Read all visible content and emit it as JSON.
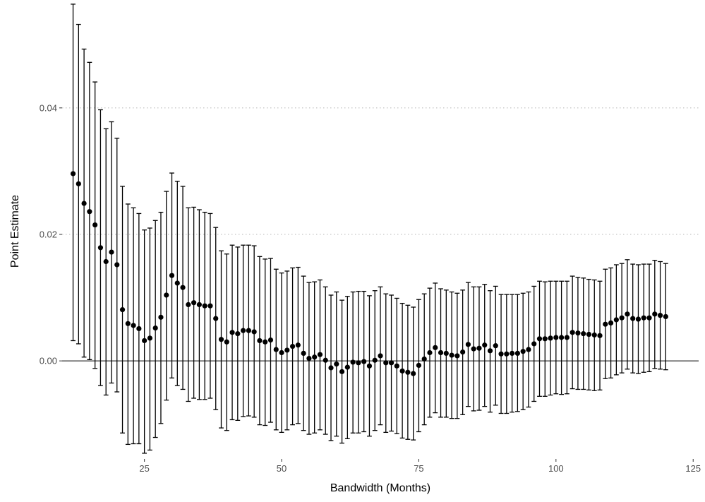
{
  "chart_data": {
    "type": "scatter",
    "title": "",
    "xlabel": "Bandwidth (Months)",
    "ylabel": "Point Estimate",
    "xlim": [
      10,
      126
    ],
    "ylim": [
      -0.0155,
      0.0565
    ],
    "xticks": [
      25,
      50,
      75,
      100,
      125
    ],
    "xtick_labels": [
      "25",
      "50",
      "75",
      "100",
      "125"
    ],
    "yticks": [
      0.0,
      0.02,
      0.04
    ],
    "ytick_labels": [
      "0.00",
      "0.02",
      "0.04"
    ],
    "grid": "dotted horizontal major gridlines",
    "reference_line": 0,
    "error_bars": "vertical with caps",
    "colors": {
      "points": "#000000",
      "grid": "#bebebe",
      "text": "#4d4d4d"
    },
    "x": [
      12,
      13,
      14,
      15,
      16,
      17,
      18,
      19,
      20,
      21,
      22,
      23,
      24,
      25,
      26,
      27,
      28,
      29,
      30,
      31,
      32,
      33,
      34,
      35,
      36,
      37,
      38,
      39,
      40,
      41,
      42,
      43,
      44,
      45,
      46,
      47,
      48,
      49,
      50,
      51,
      52,
      53,
      54,
      55,
      56,
      57,
      58,
      59,
      60,
      61,
      62,
      63,
      64,
      65,
      66,
      67,
      68,
      69,
      70,
      71,
      72,
      73,
      74,
      75,
      76,
      77,
      78,
      79,
      80,
      81,
      82,
      83,
      84,
      85,
      86,
      87,
      88,
      89,
      90,
      91,
      92,
      93,
      94,
      95,
      96,
      97,
      98,
      99,
      100,
      101,
      102,
      103,
      104,
      105,
      106,
      107,
      108,
      109,
      110,
      111,
      112,
      113,
      114,
      115,
      116,
      117,
      118,
      119,
      120
    ],
    "estimate": [
      0.0296,
      0.028,
      0.0249,
      0.0236,
      0.0215,
      0.0179,
      0.0157,
      0.0172,
      0.0152,
      0.0081,
      0.0059,
      0.0056,
      0.0051,
      0.0032,
      0.0036,
      0.0052,
      0.0069,
      0.0104,
      0.0135,
      0.0123,
      0.0116,
      0.0089,
      0.0092,
      0.0089,
      0.0087,
      0.0087,
      0.0067,
      0.0034,
      0.003,
      0.0045,
      0.0043,
      0.0048,
      0.0048,
      0.0046,
      0.0032,
      0.003,
      0.0033,
      0.0018,
      0.0013,
      0.0017,
      0.0023,
      0.0025,
      0.0012,
      0.0004,
      0.0006,
      0.001,
      0.0001,
      -0.0011,
      -0.0005,
      -0.0017,
      -0.001,
      -0.0002,
      -0.0003,
      -0.0001,
      -0.0008,
      0.0001,
      0.0008,
      -0.0003,
      -0.0003,
      -0.0008,
      -0.0016,
      -0.0018,
      -0.002,
      -0.0007,
      0.0003,
      0.0013,
      0.0021,
      0.0013,
      0.0012,
      0.0009,
      0.0008,
      0.0014,
      0.0026,
      0.0019,
      0.002,
      0.0025,
      0.0016,
      0.0024,
      0.0011,
      0.0011,
      0.0012,
      0.0012,
      0.0015,
      0.0018,
      0.0027,
      0.0035,
      0.0035,
      0.0036,
      0.0037,
      0.0037,
      0.0037,
      0.0045,
      0.0044,
      0.0043,
      0.0042,
      0.0041,
      0.004,
      0.0058,
      0.006,
      0.0065,
      0.0068,
      0.0074,
      0.0067,
      0.0066,
      0.0068,
      0.0068,
      0.0074,
      0.0072,
      0.007
    ],
    "upper": [
      0.0564,
      0.0532,
      0.0493,
      0.0472,
      0.0441,
      0.0397,
      0.0367,
      0.0378,
      0.0352,
      0.0276,
      0.0248,
      0.0242,
      0.0233,
      0.0207,
      0.021,
      0.0222,
      0.0235,
      0.0268,
      0.0297,
      0.0284,
      0.0276,
      0.0242,
      0.0243,
      0.0239,
      0.0235,
      0.0233,
      0.0211,
      0.0174,
      0.0169,
      0.0183,
      0.018,
      0.0183,
      0.0183,
      0.0182,
      0.0165,
      0.0161,
      0.0162,
      0.0145,
      0.0139,
      0.0142,
      0.0147,
      0.0148,
      0.0134,
      0.0124,
      0.0125,
      0.0128,
      0.0117,
      0.0104,
      0.0109,
      0.0096,
      0.0102,
      0.0109,
      0.011,
      0.011,
      0.0103,
      0.0111,
      0.0117,
      0.0106,
      0.0104,
      0.0099,
      0.0091,
      0.0088,
      0.0085,
      0.0097,
      0.0106,
      0.0115,
      0.0123,
      0.0114,
      0.0112,
      0.0109,
      0.0107,
      0.0112,
      0.0124,
      0.0117,
      0.0117,
      0.0121,
      0.0111,
      0.0118,
      0.0105,
      0.0105,
      0.0105,
      0.0105,
      0.0107,
      0.0109,
      0.0118,
      0.0126,
      0.0125,
      0.0126,
      0.0126,
      0.0126,
      0.0126,
      0.0134,
      0.0132,
      0.0131,
      0.0129,
      0.0128,
      0.0126,
      0.0145,
      0.0147,
      0.0152,
      0.0154,
      0.016,
      0.0153,
      0.0152,
      0.0153,
      0.0153,
      0.0159,
      0.0157,
      0.0154
    ],
    "lower": [
      0.0032,
      0.0027,
      0.0006,
      0.0002,
      -0.0012,
      -0.0039,
      -0.0054,
      -0.0035,
      -0.0049,
      -0.0114,
      -0.0132,
      -0.0131,
      -0.0131,
      -0.0146,
      -0.0141,
      -0.0121,
      -0.0099,
      -0.0062,
      -0.0027,
      -0.0039,
      -0.0045,
      -0.0064,
      -0.0059,
      -0.0061,
      -0.0061,
      -0.0059,
      -0.0077,
      -0.0106,
      -0.011,
      -0.0093,
      -0.0094,
      -0.0088,
      -0.0087,
      -0.0089,
      -0.0101,
      -0.0102,
      -0.0097,
      -0.0109,
      -0.0113,
      -0.0109,
      -0.0101,
      -0.0099,
      -0.011,
      -0.0116,
      -0.0114,
      -0.0109,
      -0.0116,
      -0.0126,
      -0.0119,
      -0.013,
      -0.0123,
      -0.0114,
      -0.0114,
      -0.0112,
      -0.0119,
      -0.011,
      -0.0101,
      -0.0113,
      -0.0111,
      -0.0115,
      -0.0122,
      -0.0124,
      -0.0125,
      -0.0112,
      -0.0101,
      -0.0089,
      -0.0082,
      -0.0089,
      -0.0089,
      -0.0091,
      -0.0091,
      -0.0085,
      -0.0072,
      -0.0079,
      -0.0078,
      -0.0072,
      -0.0081,
      -0.007,
      -0.0083,
      -0.0083,
      -0.0081,
      -0.008,
      -0.0077,
      -0.0073,
      -0.0064,
      -0.0056,
      -0.0056,
      -0.0054,
      -0.0052,
      -0.0053,
      -0.0052,
      -0.0044,
      -0.0045,
      -0.0045,
      -0.0046,
      -0.0047,
      -0.0046,
      -0.0028,
      -0.0027,
      -0.0022,
      -0.0019,
      -0.0013,
      -0.0019,
      -0.002,
      -0.0018,
      -0.0017,
      -0.0012,
      -0.0013,
      -0.0014
    ]
  }
}
